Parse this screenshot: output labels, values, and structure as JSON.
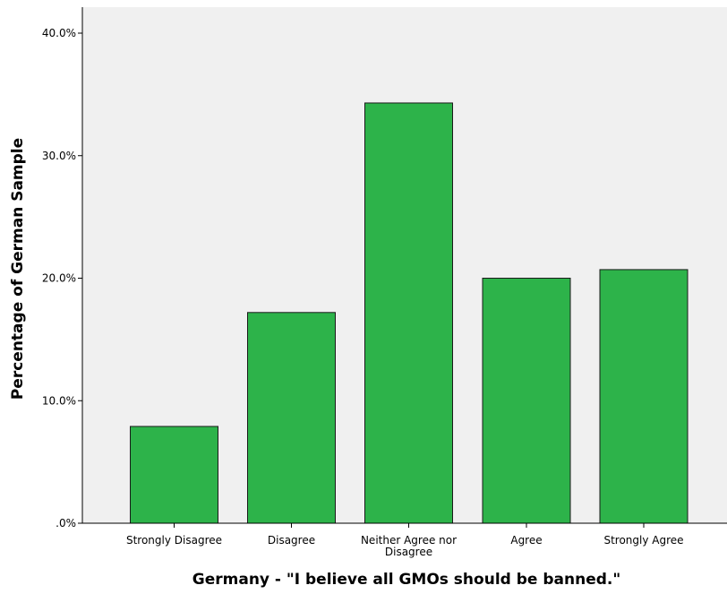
{
  "chart_data": {
    "type": "bar",
    "title": "",
    "xlabel": "Germany - \"I believe all GMOs should be banned.\"",
    "ylabel": "Percentage of German Sample",
    "categories": [
      [
        "Strongly Disagree"
      ],
      [
        "Disagree"
      ],
      [
        "Neither Agree nor",
        "Disagree"
      ],
      [
        "Agree"
      ],
      [
        "Strongly Agree"
      ]
    ],
    "values": [
      7.9,
      17.2,
      34.3,
      20.0,
      20.7
    ],
    "value_unit": "%",
    "ylim": [
      0,
      40
    ],
    "yticks": [
      0,
      10,
      20,
      30,
      40
    ],
    "ytick_labels": [
      ".0%",
      "10.0%",
      "20.0%",
      "30.0%",
      "40.0%"
    ],
    "grid": false,
    "legend": "none",
    "colors": {
      "bar_fill": "#2db34a",
      "bar_stroke": "#1a1a1a",
      "plot_background": "#f0f0f0",
      "axis": "#000000"
    }
  }
}
